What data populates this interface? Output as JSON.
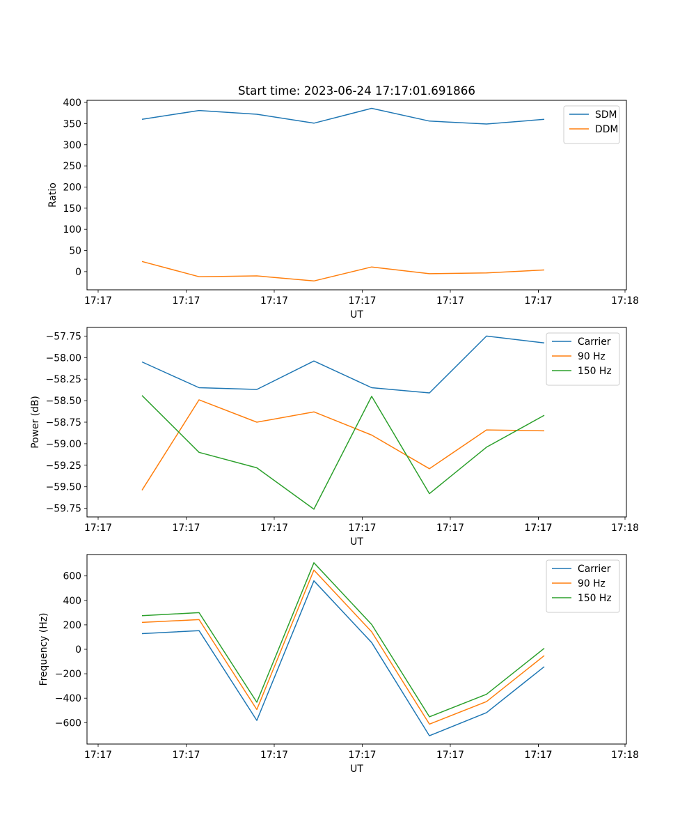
{
  "chart_data": [
    {
      "type": "line",
      "title": "Start time: 2023-06-24 17:17:01.691866",
      "xlabel": "UT",
      "ylabel": "Ratio",
      "x_tick_labels": [
        "17:17",
        "17:17",
        "17:17",
        "17:17",
        "17:17",
        "17:17",
        "17:17",
        "17:18"
      ],
      "y_ticks": [
        0,
        50,
        100,
        150,
        200,
        250,
        300,
        350,
        400
      ],
      "y_tick_labels": [
        "0",
        "50",
        "100",
        "150",
        "200",
        "250",
        "300",
        "350",
        "400"
      ],
      "ylim": [
        -43,
        405
      ],
      "grid": false,
      "legend_position": "upper right",
      "series": [
        {
          "name": "SDM",
          "color": "#1f77b4",
          "values": [
            360,
            381,
            372,
            351,
            386,
            356,
            349,
            360
          ]
        },
        {
          "name": "DDM",
          "color": "#ff7f0e",
          "values": [
            24,
            -12,
            -10,
            -22,
            11,
            -5,
            -3,
            4
          ]
        }
      ]
    },
    {
      "type": "line",
      "title": "",
      "xlabel": "UT",
      "ylabel": "Power (dB)",
      "x_tick_labels": [
        "17:17",
        "17:17",
        "17:17",
        "17:17",
        "17:17",
        "17:17",
        "17:17",
        "17:18"
      ],
      "y_ticks": [
        -59.75,
        -59.5,
        -59.25,
        -59.0,
        -58.75,
        -58.5,
        -58.25,
        -58.0,
        -57.75
      ],
      "y_tick_labels": [
        "−59.75",
        "−59.50",
        "−59.25",
        "−59.00",
        "−58.75",
        "−58.50",
        "−58.25",
        "−58.00",
        "−57.75"
      ],
      "ylim": [
        -59.85,
        -57.65
      ],
      "grid": false,
      "legend_position": "upper right",
      "series": [
        {
          "name": "Carrier",
          "color": "#1f77b4",
          "values": [
            -58.05,
            -58.35,
            -58.37,
            -58.04,
            -58.35,
            -58.41,
            -57.75,
            -57.83
          ]
        },
        {
          "name": "90 Hz",
          "color": "#ff7f0e",
          "values": [
            -59.54,
            -58.49,
            -58.75,
            -58.63,
            -58.9,
            -59.29,
            -58.84,
            -58.85
          ]
        },
        {
          "name": "150 Hz",
          "color": "#2ca02c",
          "values": [
            -58.44,
            -59.1,
            -59.28,
            -59.76,
            -58.45,
            -59.58,
            -59.04,
            -58.67
          ]
        }
      ]
    },
    {
      "type": "line",
      "title": "",
      "xlabel": "UT",
      "ylabel": "Frequency (Hz)",
      "x_tick_labels": [
        "17:17",
        "17:17",
        "17:17",
        "17:17",
        "17:17",
        "17:17",
        "17:17",
        "17:18"
      ],
      "y_ticks": [
        -600,
        -400,
        -200,
        0,
        200,
        400,
        600
      ],
      "y_tick_labels": [
        "−600",
        "−400",
        "−200",
        "0",
        "200",
        "400",
        "600"
      ],
      "ylim": [
        -775,
        775
      ],
      "grid": false,
      "legend_position": "upper right",
      "series": [
        {
          "name": "Carrier",
          "color": "#1f77b4",
          "values": [
            128,
            153,
            -582,
            560,
            55,
            -707,
            -518,
            -142
          ]
        },
        {
          "name": "90 Hz",
          "color": "#ff7f0e",
          "values": [
            220,
            243,
            -493,
            648,
            143,
            -612,
            -428,
            -52
          ]
        },
        {
          "name": "150 Hz",
          "color": "#2ca02c",
          "values": [
            275,
            300,
            -433,
            708,
            203,
            -552,
            -368,
            8
          ]
        }
      ]
    }
  ]
}
